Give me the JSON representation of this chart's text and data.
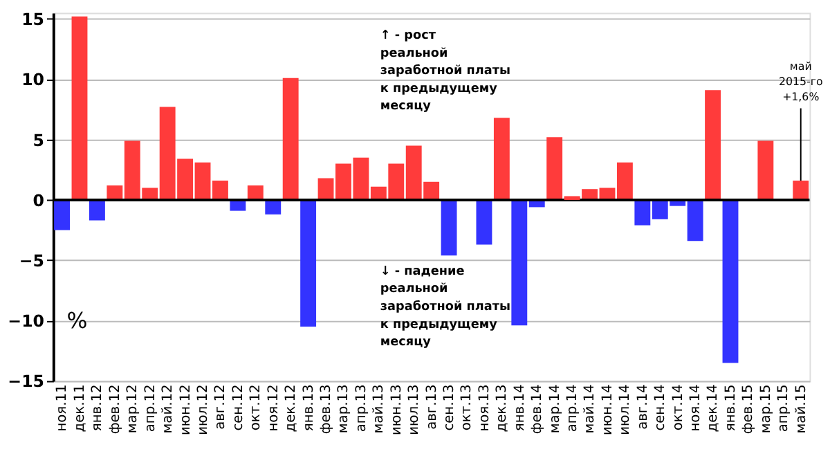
{
  "chart_data": {
    "type": "bar",
    "categories": [
      "ноя.11",
      "дек.11",
      "янв.12",
      "фев.12",
      "мар.12",
      "апр.12",
      "май.12",
      "июн.12",
      "июл.12",
      "авг.12",
      "сен.12",
      "окт.12",
      "ноя.12",
      "дек.12",
      "янв.13",
      "фев.13",
      "мар.13",
      "апр.13",
      "май.13",
      "июн.13",
      "июл.13",
      "авг.13",
      "сен.13",
      "окт.13",
      "ноя.13",
      "дек.13",
      "янв.14",
      "фев.14",
      "мар.14",
      "апр.14",
      "май.14",
      "июн.14",
      "июл.14",
      "авг.14",
      "сен.14",
      "окт.14",
      "ноя.14",
      "дек.14",
      "янв.15",
      "фев.15",
      "мар.15",
      "апр.15",
      "май.15"
    ],
    "values": [
      -2.5,
      15.2,
      -1.7,
      1.2,
      4.9,
      1.0,
      7.7,
      3.4,
      3.1,
      1.6,
      -0.9,
      1.2,
      -1.2,
      10.1,
      -10.5,
      1.8,
      3.0,
      3.5,
      1.1,
      3.0,
      4.5,
      1.5,
      -4.6,
      0,
      -3.7,
      6.8,
      -10.4,
      -0.6,
      5.2,
      0.2,
      0.9,
      1.0,
      3.1,
      -2.1,
      -1.6,
      -0.5,
      -3.4,
      9.1,
      -13.5,
      0,
      4.9,
      0,
      1.6
    ],
    "colors": [
      "#3333ff",
      "#ff3b3b",
      "#3333ff",
      "#ff3b3b",
      "#ff3b3b",
      "#ff3b3b",
      "#ff3b3b",
      "#ff3b3b",
      "#ff3b3b",
      "#ff3b3b",
      "#3333ff",
      "#ff3b3b",
      "#3333ff",
      "#ff3b3b",
      "#3333ff",
      "#ff3b3b",
      "#ff3b3b",
      "#ff3b3b",
      "#ff3b3b",
      "#ff3b3b",
      "#ff3b3b",
      "#ff3b3b",
      "#3333ff",
      "#ff3b3b",
      "#3333ff",
      "#ff3b3b",
      "#3333ff",
      "#3333ff",
      "#ff3b3b",
      "#ff3b3b",
      "#ff3b3b",
      "#ff3b3b",
      "#ff3b3b",
      "#3333ff",
      "#3333ff",
      "#3333ff",
      "#3333ff",
      "#ff3b3b",
      "#3333ff",
      "#ff3b3b",
      "#ff3b3b",
      "#ff3b3b",
      "#ff3b3b"
    ],
    "ylim": [
      -15,
      15.5
    ],
    "yticks": [
      -15,
      -10,
      -5,
      0,
      5,
      10,
      15
    ],
    "grid": "y",
    "annotations": [
      "↑ - рост\nреальной\nзаработной платы\nк предыдущему\nмесяцу",
      "↓ - падение\nреальной\nзаработной платы\nк предыдущему\nмесяцу",
      {
        "text": "май\n2015-го\n+1,6%",
        "x": "май.15",
        "y": 1.6
      },
      "%"
    ]
  }
}
